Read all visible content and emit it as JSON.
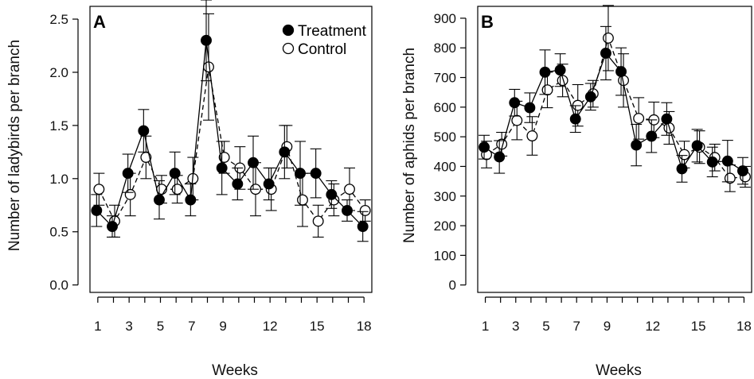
{
  "chart_data": [
    {
      "type": "line",
      "panel_label": "A",
      "title": "",
      "xlabel": "Weeks",
      "ylabel": "Number of ladybirds per branch",
      "x": [
        1,
        2,
        3,
        4,
        5,
        6,
        7,
        8,
        9,
        10,
        11,
        12,
        13,
        14,
        15,
        16,
        17,
        18
      ],
      "xticks": [
        1,
        3,
        5,
        7,
        9,
        12,
        15,
        18
      ],
      "xlim": [
        0.5,
        18.5
      ],
      "ylim": [
        -0.07,
        2.62
      ],
      "yticks": [
        0.0,
        0.5,
        1.0,
        1.5,
        2.0,
        2.5
      ],
      "ytick_labels": [
        "0.0",
        "0.5",
        "1.0",
        "1.5",
        "2.0",
        "2.5"
      ],
      "legend": "top-right",
      "grid": false,
      "series": [
        {
          "name": "Treatment",
          "marker": "filled-circle",
          "line": "solid",
          "values": [
            0.7,
            0.55,
            1.05,
            1.45,
            0.8,
            1.05,
            0.8,
            2.3,
            1.1,
            0.95,
            1.15,
            0.95,
            1.25,
            1.05,
            1.05,
            0.85,
            0.7,
            0.55
          ],
          "error": [
            0.15,
            0.1,
            0.18,
            0.2,
            0.18,
            0.2,
            0.15,
            0.38,
            0.25,
            0.15,
            0.25,
            0.15,
            0.25,
            0.3,
            0.23,
            0.13,
            0.1,
            0.14
          ]
        },
        {
          "name": "Control",
          "marker": "open-circle",
          "line": "dashed",
          "values": [
            0.9,
            0.6,
            0.85,
            1.2,
            0.9,
            0.9,
            1.0,
            2.05,
            1.2,
            1.1,
            0.9,
            0.9,
            1.3,
            0.8,
            0.6,
            0.8,
            0.9,
            0.7
          ],
          "error": [
            0.15,
            0.15,
            0.2,
            0.2,
            0.13,
            0.13,
            0.2,
            0.5,
            0.15,
            0.2,
            0.25,
            0.2,
            0.2,
            0.25,
            0.15,
            0.15,
            0.2,
            0.1
          ]
        }
      ]
    },
    {
      "type": "line",
      "panel_label": "B",
      "title": "",
      "xlabel": "Weeks",
      "ylabel": "Number of aphids per branch",
      "x": [
        1,
        2,
        3,
        4,
        5,
        6,
        7,
        8,
        9,
        10,
        11,
        12,
        13,
        14,
        15,
        16,
        17,
        18
      ],
      "xticks": [
        1,
        3,
        5,
        7,
        9,
        12,
        15,
        18
      ],
      "xlim": [
        0.5,
        18.5
      ],
      "ylim": [
        -25,
        940
      ],
      "yticks": [
        0,
        100,
        200,
        300,
        400,
        500,
        600,
        700,
        800,
        900
      ],
      "ytick_labels": [
        "0",
        "100",
        "200",
        "300",
        "400",
        "500",
        "600",
        "700",
        "800",
        "900"
      ],
      "legend": "none",
      "grid": false,
      "series": [
        {
          "name": "Treatment",
          "marker": "filled-circle",
          "line": "solid",
          "values": [
            465,
            432,
            615,
            598,
            718,
            725,
            560,
            635,
            782,
            720,
            472,
            502,
            560,
            392,
            470,
            415,
            418,
            385
          ],
          "error": [
            40,
            55,
            45,
            50,
            75,
            55,
            45,
            45,
            90,
            80,
            70,
            55,
            55,
            45,
            55,
            50,
            70,
            45
          ]
        },
        {
          "name": "Control",
          "marker": "open-circle",
          "line": "dashed",
          "values": [
            440,
            475,
            555,
            503,
            658,
            690,
            606,
            645,
            833,
            690,
            562,
            557,
            530,
            440,
            465,
            430,
            360,
            365
          ],
          "error": [
            45,
            40,
            65,
            65,
            60,
            55,
            70,
            45,
            110,
            90,
            70,
            60,
            55,
            45,
            55,
            45,
            45,
            35
          ]
        }
      ]
    }
  ]
}
